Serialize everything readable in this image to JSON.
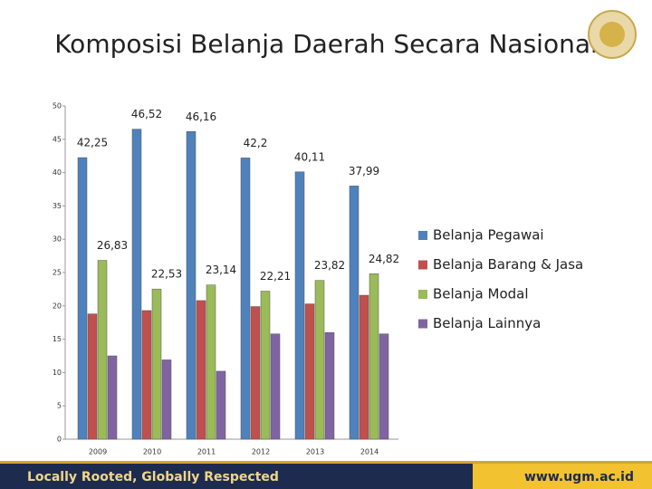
{
  "title": "Komposisi Belanja Daerah Secara Nasional",
  "chart_data": {
    "type": "bar",
    "categories": [
      "2009",
      "2010",
      "2011",
      "2012",
      "2013",
      "2014"
    ],
    "series": [
      {
        "name": "Belanja Pegawai",
        "color": "#4f81bd",
        "values": [
          42.25,
          46.52,
          46.16,
          42.2,
          40.11,
          37.99
        ],
        "value_labels": [
          "42,25",
          "46,52",
          "46,16",
          "42,2",
          "40,11",
          "37,99"
        ]
      },
      {
        "name": "Belanja Barang & Jasa",
        "color": "#c0504d",
        "values": [
          18.8,
          19.3,
          20.8,
          19.9,
          20.3,
          21.6
        ]
      },
      {
        "name": "Belanja Modal",
        "color": "#9bbb59",
        "values": [
          26.83,
          22.53,
          23.14,
          22.21,
          23.82,
          24.82
        ],
        "value_labels": [
          "26,83",
          "22,53",
          "23,14",
          "22,21",
          "23,82",
          "24,82"
        ]
      },
      {
        "name": "Belanja Lainnya",
        "color": "#8064a2",
        "values": [
          12.5,
          11.9,
          10.2,
          15.8,
          16.0,
          15.8
        ]
      }
    ],
    "ylim": [
      0,
      50
    ],
    "yticks": [
      0,
      5,
      10,
      15,
      20,
      25,
      30,
      35,
      40,
      45,
      50
    ],
    "legend": "right"
  },
  "footer": {
    "tagline": "Locally Rooted, Globally Respected",
    "url": "www.ugm.ac.id"
  }
}
